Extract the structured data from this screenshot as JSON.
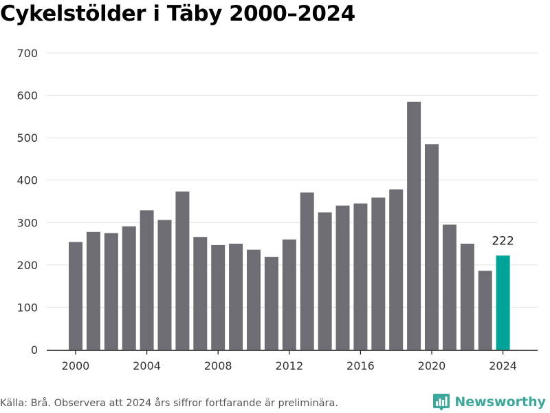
{
  "title": "Cykelstölder i Täby 2000–2024",
  "source": "Källa: Brå. Observera att 2024 års siffror fortfarande är preliminära.",
  "brand": "Newsworthy",
  "colors": {
    "bar": "#6e6d73",
    "highlight": "#00a398",
    "grid": "#e2e2e2",
    "brand": "#3aa89a"
  },
  "chart_data": {
    "type": "bar",
    "categories": [
      2000,
      2001,
      2002,
      2003,
      2004,
      2005,
      2006,
      2007,
      2008,
      2009,
      2010,
      2011,
      2012,
      2013,
      2014,
      2015,
      2016,
      2017,
      2018,
      2019,
      2020,
      2021,
      2022,
      2023,
      2024
    ],
    "values": [
      254,
      278,
      275,
      291,
      329,
      306,
      373,
      266,
      247,
      250,
      236,
      219,
      260,
      371,
      324,
      340,
      345,
      359,
      378,
      585,
      485,
      295,
      250,
      186,
      222
    ],
    "highlight_category": 2024,
    "data_labels": [
      {
        "category": 2024,
        "text": "222"
      }
    ],
    "xticks": [
      "2000",
      "2004",
      "2008",
      "2012",
      "2016",
      "2020",
      "2024"
    ],
    "yticks": [
      "0",
      "100",
      "200",
      "300",
      "400",
      "500",
      "600",
      "700"
    ],
    "ylim": [
      0,
      700
    ],
    "xlabel": "",
    "ylabel": "",
    "grid": true
  }
}
